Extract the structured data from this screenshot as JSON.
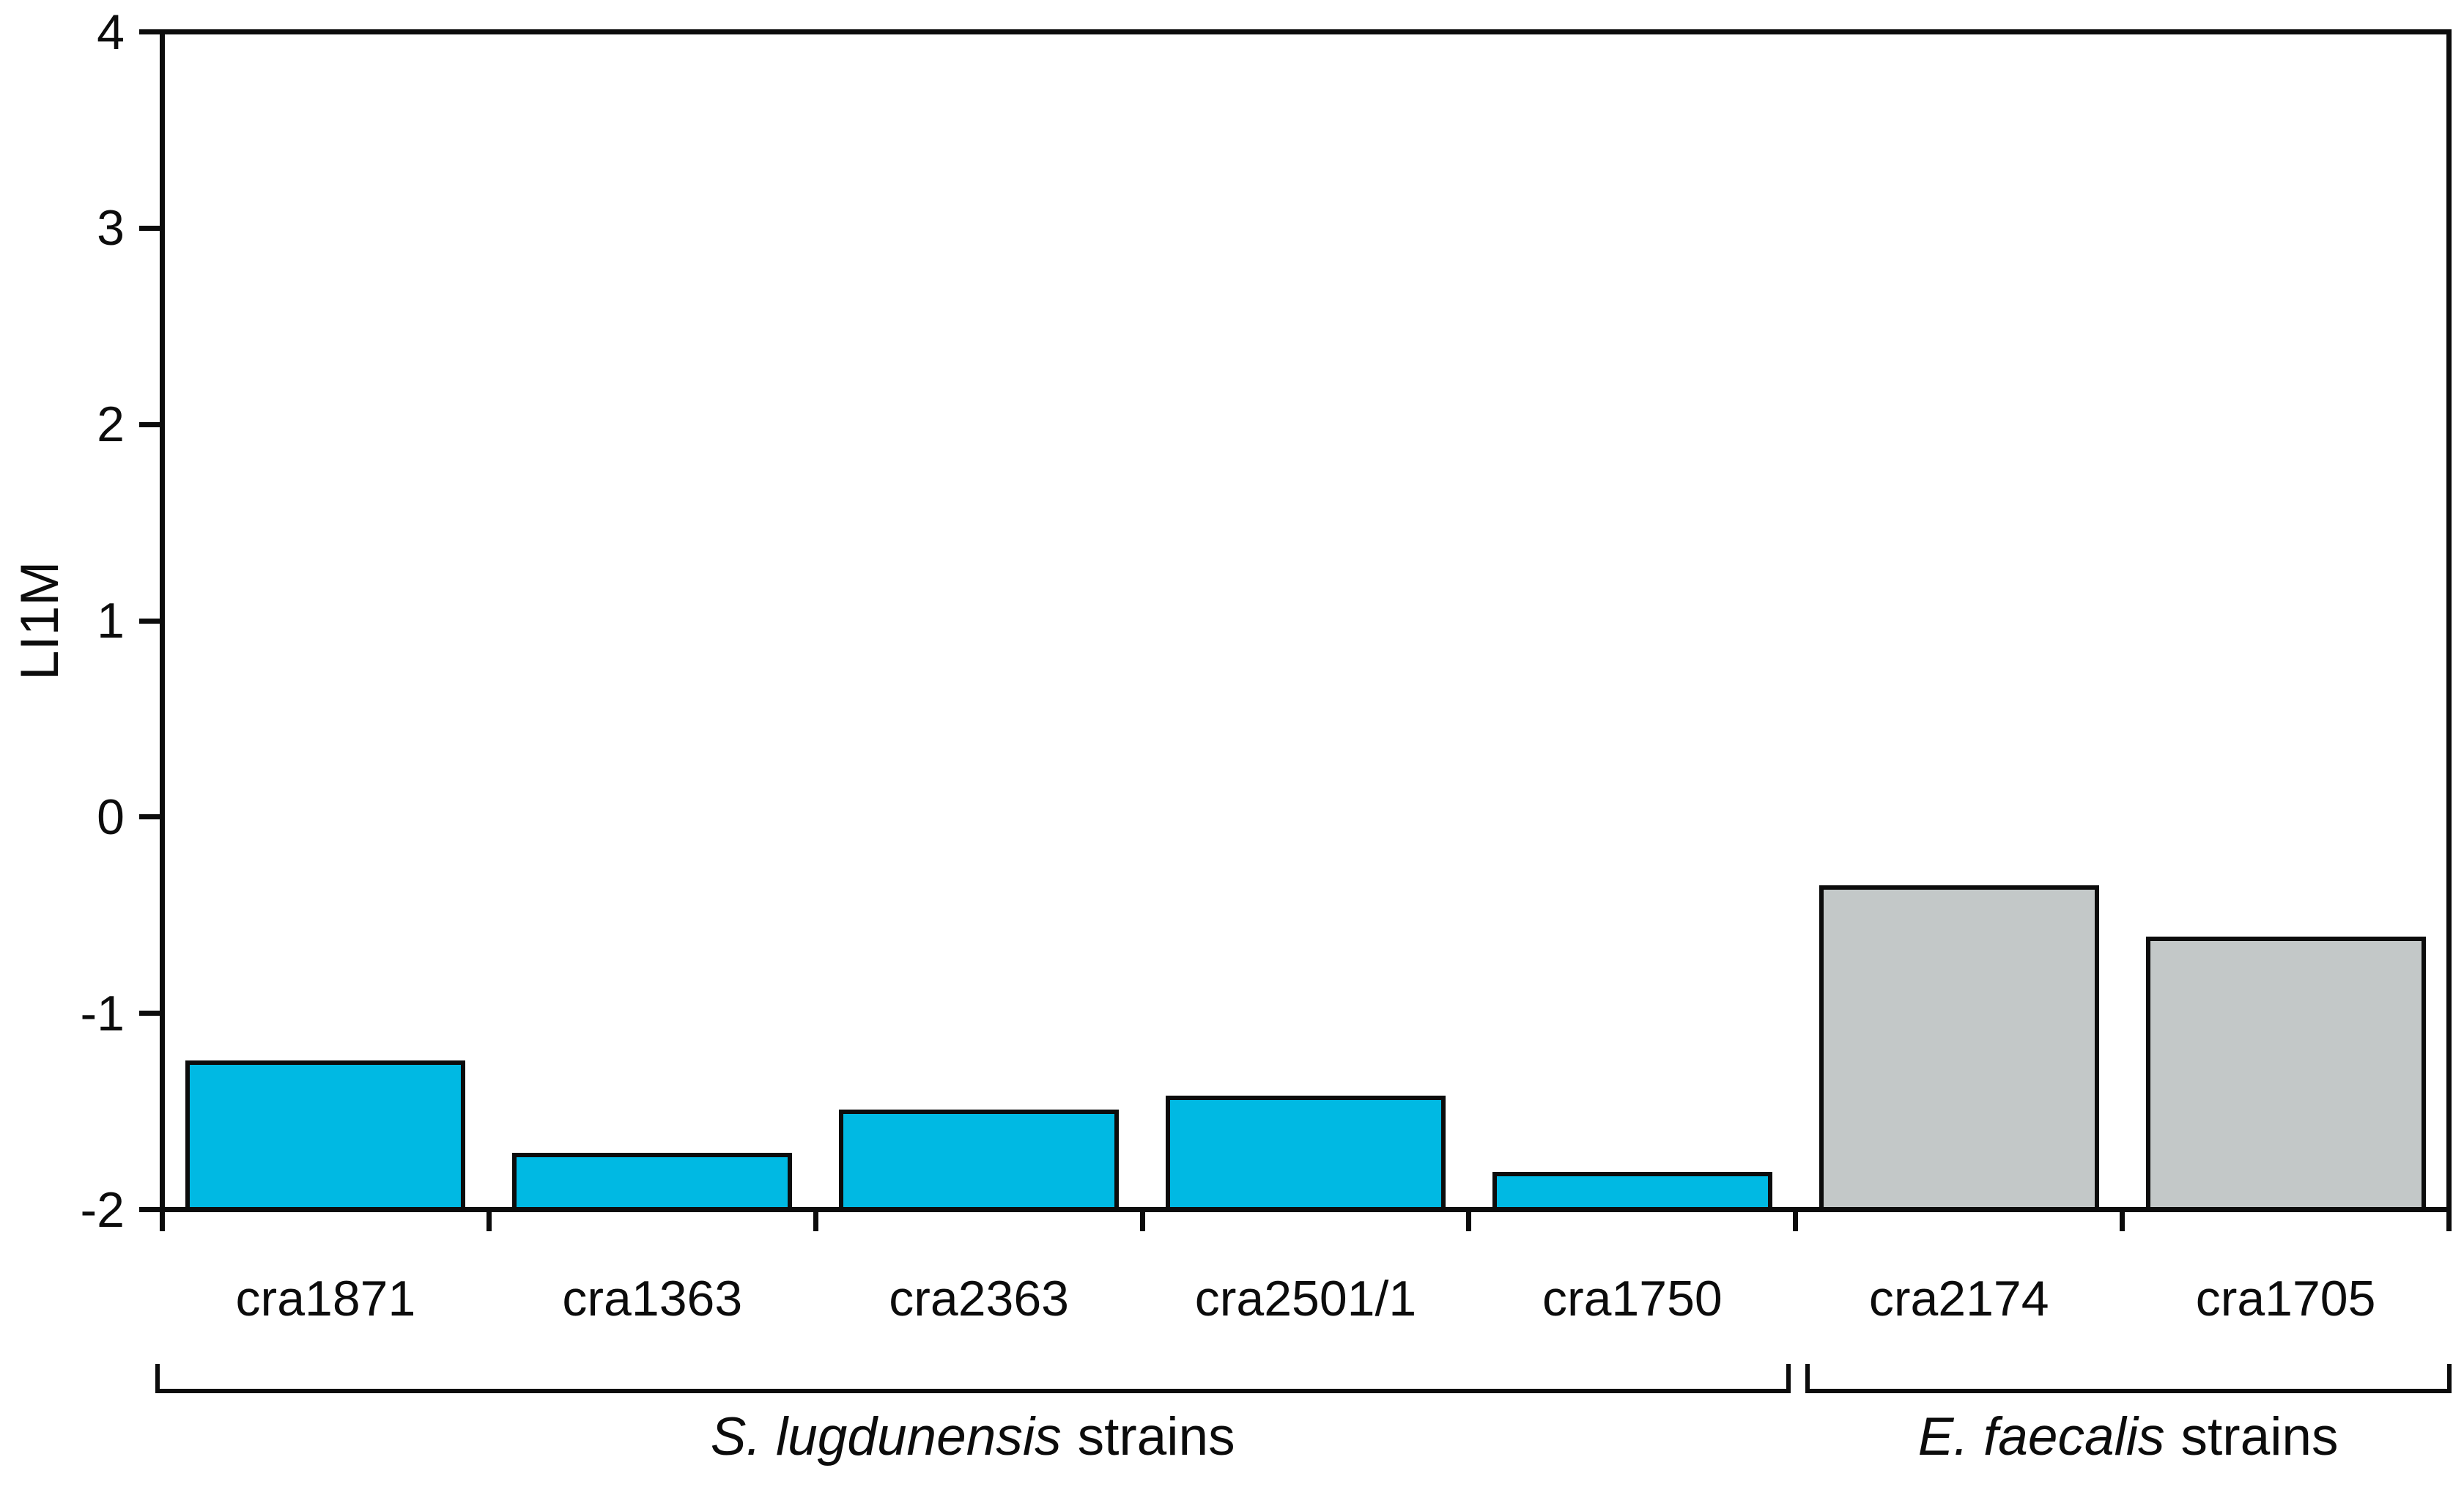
{
  "figure": {
    "background": "#ffffff",
    "ink_color": "#0c0c0c"
  },
  "chart_data": {
    "type": "bar",
    "title": "",
    "xlabel": "",
    "ylabel": "LI1M",
    "ylim": [
      -2,
      4
    ],
    "yticks": [
      4,
      3,
      2,
      1,
      0,
      -1,
      -2
    ],
    "baseline": -2,
    "grid": false,
    "legend": false,
    "categories": [
      "cra1871",
      "cra1363",
      "cra2363",
      "cra2501/1",
      "cra1750",
      "cra2174",
      "cra1705"
    ],
    "values": [
      -1.25,
      -1.72,
      -1.5,
      -1.43,
      -1.82,
      -0.36,
      -0.62
    ],
    "bar_colors": [
      "#00b9e3",
      "#00b9e3",
      "#00b9e3",
      "#00b9e3",
      "#00b9e3",
      "#c3c8c8",
      "#c3c8c8"
    ],
    "groups": [
      {
        "italic": "S. lugdunensis",
        "regular": "strains",
        "from": 0,
        "to": 4
      },
      {
        "italic": "E. faecalis",
        "regular": "strains",
        "from": 5,
        "to": 6
      }
    ],
    "colors": {
      "cyan_bar": "#00b9e3",
      "gray_bar": "#c3c8c8",
      "axis": "#0c0c0c",
      "background": "#ffffff"
    }
  }
}
